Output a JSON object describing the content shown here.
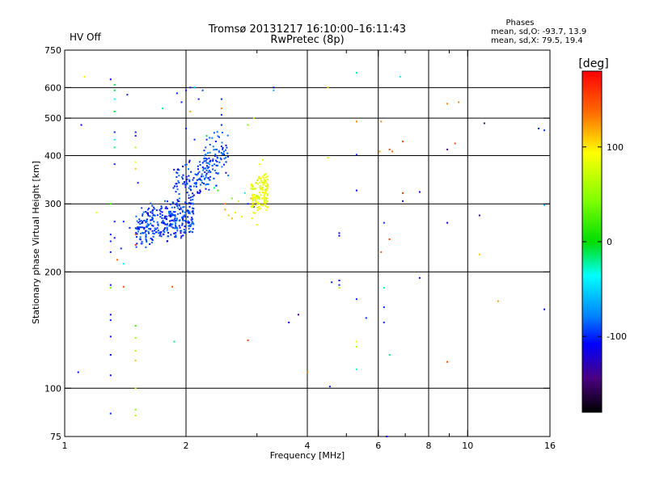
{
  "header": {
    "title": "Tromsø 20131217 16:10:00–16:11:43",
    "subtitle": "RwPretec (8p)",
    "status": "HV Off",
    "status_color": "#cc0000",
    "stats_label": "Phases",
    "stats_o": "mean, sd,O: -93.7, 13.9",
    "stats_x": "mean, sd,X:  79.5, 19.4"
  },
  "colorbar": {
    "unit": "[deg]",
    "min": -180,
    "max": 180,
    "ticks": [
      {
        "value": 100,
        "label": "100"
      },
      {
        "value": 0,
        "label": "0"
      },
      {
        "value": -100,
        "label": "-100"
      }
    ]
  },
  "chart_data": {
    "type": "scatter",
    "xscale": "log",
    "yscale": "log",
    "xlabel": "Frequency [MHz]",
    "ylabel": "Stationary phase Virtual Height [km]",
    "xlim": [
      1,
      16
    ],
    "ylim": [
      75,
      750
    ],
    "grid": true,
    "x_ticks": [
      {
        "value": 1,
        "label": "1"
      },
      {
        "value": 2,
        "label": "2"
      },
      {
        "value": 4,
        "label": "4"
      },
      {
        "value": 6,
        "label": "6"
      },
      {
        "value": 8,
        "label": "8"
      },
      {
        "value": 10,
        "label": "10"
      },
      {
        "value": 16,
        "label": "16"
      }
    ],
    "x_minor_ticks": [
      3,
      5,
      7,
      9
    ],
    "x_gridlines": [
      2,
      4,
      6,
      8,
      10
    ],
    "y_ticks": [
      {
        "value": 75,
        "label": "75"
      },
      {
        "value": 100,
        "label": "100"
      },
      {
        "value": 200,
        "label": "200"
      },
      {
        "value": 300,
        "label": "300"
      },
      {
        "value": 400,
        "label": "400"
      },
      {
        "value": 500,
        "label": "500"
      },
      {
        "value": 600,
        "label": "600"
      },
      {
        "value": 750,
        "label": "750"
      }
    ],
    "y_gridlines": [
      100,
      200,
      300,
      400,
      500,
      600
    ],
    "color_encoding": "phase [deg]",
    "series": [
      {
        "clusters": [
          {
            "x": [
              1.5,
              2.1
            ],
            "y": [
              235,
              310
            ],
            "n": 330,
            "phase": -95
          },
          {
            "x": [
              1.85,
              2.3
            ],
            "y": [
              300,
              400
            ],
            "n": 110,
            "phase": -95
          },
          {
            "x": [
              2.2,
              2.55
            ],
            "y": [
              330,
              470
            ],
            "n": 90,
            "phase": -92
          }
        ],
        "points": [
          {
            "x": 1.3,
            "y": 630,
            "phase": -110
          },
          {
            "x": 1.33,
            "y": 610,
            "phase": -10
          },
          {
            "x": 1.33,
            "y": 590,
            "phase": -10
          },
          {
            "x": 1.33,
            "y": 560,
            "phase": -40
          },
          {
            "x": 1.33,
            "y": 520,
            "phase": -10
          },
          {
            "x": 1.43,
            "y": 575,
            "phase": -100
          },
          {
            "x": 1.33,
            "y": 460,
            "phase": -100
          },
          {
            "x": 1.33,
            "y": 440,
            "phase": -40
          },
          {
            "x": 1.33,
            "y": 420,
            "phase": -20
          },
          {
            "x": 1.33,
            "y": 380,
            "phase": -100
          },
          {
            "x": 1.5,
            "y": 460,
            "phase": -100
          },
          {
            "x": 1.5,
            "y": 450,
            "phase": -100
          },
          {
            "x": 1.5,
            "y": 420,
            "phase": 60
          },
          {
            "x": 1.5,
            "y": 385,
            "phase": 90
          },
          {
            "x": 1.5,
            "y": 370,
            "phase": 110
          },
          {
            "x": 1.52,
            "y": 340,
            "phase": -100
          },
          {
            "x": 1.75,
            "y": 530,
            "phase": -20
          },
          {
            "x": 1.1,
            "y": 480,
            "phase": -110
          },
          {
            "x": 1.12,
            "y": 640,
            "phase": 100
          },
          {
            "x": 1.3,
            "y": 300,
            "phase": 20
          },
          {
            "x": 1.3,
            "y": 250,
            "phase": -100
          },
          {
            "x": 1.3,
            "y": 240,
            "phase": -100
          },
          {
            "x": 1.3,
            "y": 225,
            "phase": -100
          },
          {
            "x": 1.33,
            "y": 270,
            "phase": -100
          },
          {
            "x": 1.33,
            "y": 245,
            "phase": -110
          },
          {
            "x": 1.35,
            "y": 215,
            "phase": 140
          },
          {
            "x": 1.38,
            "y": 230,
            "phase": -100
          },
          {
            "x": 1.4,
            "y": 210,
            "phase": -40
          },
          {
            "x": 1.4,
            "y": 270,
            "phase": -100
          },
          {
            "x": 1.45,
            "y": 260,
            "phase": -100
          },
          {
            "x": 1.5,
            "y": 250,
            "phase": 140
          },
          {
            "x": 1.5,
            "y": 235,
            "phase": 160
          },
          {
            "x": 1.2,
            "y": 285,
            "phase": 90
          },
          {
            "x": 1.9,
            "y": 580,
            "phase": -100
          },
          {
            "x": 2.0,
            "y": 590,
            "phase": -100
          },
          {
            "x": 2.05,
            "y": 600,
            "phase": -100
          },
          {
            "x": 2.1,
            "y": 600,
            "phase": -60
          },
          {
            "x": 2.15,
            "y": 560,
            "phase": -100
          },
          {
            "x": 2.2,
            "y": 590,
            "phase": -90
          },
          {
            "x": 1.95,
            "y": 550,
            "phase": -100
          },
          {
            "x": 2.05,
            "y": 520,
            "phase": 120
          },
          {
            "x": 2.0,
            "y": 470,
            "phase": -100
          },
          {
            "x": 2.1,
            "y": 440,
            "phase": -100
          },
          {
            "x": 2.25,
            "y": 450,
            "phase": -10
          },
          {
            "x": 2.45,
            "y": 560,
            "phase": -100
          },
          {
            "x": 2.45,
            "y": 530,
            "phase": 130
          },
          {
            "x": 2.45,
            "y": 510,
            "phase": -100
          },
          {
            "x": 2.45,
            "y": 480,
            "phase": -100
          },
          {
            "x": 2.5,
            "y": 300,
            "phase": 130
          },
          {
            "x": 2.5,
            "y": 290,
            "phase": 120
          },
          {
            "x": 2.55,
            "y": 280,
            "phase": 110
          },
          {
            "x": 2.6,
            "y": 275,
            "phase": 115
          },
          {
            "x": 2.65,
            "y": 285,
            "phase": 100
          },
          {
            "x": 2.75,
            "y": 278,
            "phase": 100
          },
          {
            "x": 2.8,
            "y": 320,
            "phase": -40
          },
          {
            "x": 2.9,
            "y": 310,
            "phase": 120
          },
          {
            "x": 2.85,
            "y": 480,
            "phase": 40
          },
          {
            "x": 2.95,
            "y": 500,
            "phase": 60
          },
          {
            "x": 2.35,
            "y": 330,
            "phase": -20
          },
          {
            "x": 2.4,
            "y": 325,
            "phase": 20
          },
          {
            "x": 2.6,
            "y": 310,
            "phase": 40
          },
          {
            "x": 2.7,
            "y": 305,
            "phase": 70
          },
          {
            "x": 2.85,
            "y": 300,
            "phase": -100
          },
          {
            "x": 2.95,
            "y": 295,
            "phase": -100
          },
          {
            "x": 3.0,
            "y": 300,
            "phase": -130
          },
          {
            "x": 3.15,
            "y": 300,
            "phase": 110
          },
          {
            "x": 3.3,
            "y": 600,
            "phase": -110
          },
          {
            "x": 3.3,
            "y": 590,
            "phase": -60
          },
          {
            "x": 1.3,
            "y": 185,
            "phase": -110
          },
          {
            "x": 1.3,
            "y": 182,
            "phase": 40
          },
          {
            "x": 1.4,
            "y": 183,
            "phase": 150
          },
          {
            "x": 1.3,
            "y": 155,
            "phase": -110
          },
          {
            "x": 1.3,
            "y": 150,
            "phase": -100
          },
          {
            "x": 1.3,
            "y": 136,
            "phase": -110
          },
          {
            "x": 1.3,
            "y": 122,
            "phase": -110
          },
          {
            "x": 1.3,
            "y": 108,
            "phase": -110
          },
          {
            "x": 1.3,
            "y": 86,
            "phase": -100
          },
          {
            "x": 1.5,
            "y": 145,
            "phase": 20
          },
          {
            "x": 1.5,
            "y": 135,
            "phase": 50
          },
          {
            "x": 1.5,
            "y": 125,
            "phase": 60
          },
          {
            "x": 1.5,
            "y": 118,
            "phase": 110
          },
          {
            "x": 1.5,
            "y": 100,
            "phase": 80
          },
          {
            "x": 1.5,
            "y": 88,
            "phase": 40
          },
          {
            "x": 1.5,
            "y": 85,
            "phase": 60
          },
          {
            "x": 1.08,
            "y": 110,
            "phase": -110
          },
          {
            "x": 1.85,
            "y": 183,
            "phase": 150
          },
          {
            "x": 1.87,
            "y": 132,
            "phase": -20
          },
          {
            "x": 2.85,
            "y": 133,
            "phase": 160
          },
          {
            "x": 3.6,
            "y": 148,
            "phase": -110
          },
          {
            "x": 3.8,
            "y": 155,
            "phase": -140
          },
          {
            "x": 4.0,
            "y": 110,
            "phase": 130
          },
          {
            "x": 4.6,
            "y": 188,
            "phase": -100
          },
          {
            "x": 4.8,
            "y": 190,
            "phase": -110
          },
          {
            "x": 4.8,
            "y": 185,
            "phase": -100
          },
          {
            "x": 4.8,
            "y": 182,
            "phase": 60
          },
          {
            "x": 4.55,
            "y": 101,
            "phase": -100
          },
          {
            "x": 4.5,
            "y": 395,
            "phase": 70
          },
          {
            "x": 4.5,
            "y": 600,
            "phase": 110
          },
          {
            "x": 4.8,
            "y": 252,
            "phase": -110
          },
          {
            "x": 4.8,
            "y": 248,
            "phase": -110
          },
          {
            "x": 5.3,
            "y": 655,
            "phase": -20
          },
          {
            "x": 5.3,
            "y": 490,
            "phase": 130
          },
          {
            "x": 5.3,
            "y": 402,
            "phase": -100
          },
          {
            "x": 5.3,
            "y": 325,
            "phase": -110
          },
          {
            "x": 5.3,
            "y": 170,
            "phase": -100
          },
          {
            "x": 5.3,
            "y": 132,
            "phase": 90
          },
          {
            "x": 5.3,
            "y": 128,
            "phase": 60
          },
          {
            "x": 5.3,
            "y": 112,
            "phase": -30
          },
          {
            "x": 5.6,
            "y": 152,
            "phase": -100
          },
          {
            "x": 6.1,
            "y": 490,
            "phase": 130
          },
          {
            "x": 6.05,
            "y": 410,
            "phase": 120
          },
          {
            "x": 6.2,
            "y": 268,
            "phase": -100
          },
          {
            "x": 6.1,
            "y": 225,
            "phase": 140
          },
          {
            "x": 6.2,
            "y": 182,
            "phase": -30
          },
          {
            "x": 6.2,
            "y": 162,
            "phase": -100
          },
          {
            "x": 6.2,
            "y": 148,
            "phase": -100
          },
          {
            "x": 6.4,
            "y": 243,
            "phase": 150
          },
          {
            "x": 6.4,
            "y": 415,
            "phase": 150
          },
          {
            "x": 6.5,
            "y": 410,
            "phase": 140
          },
          {
            "x": 6.4,
            "y": 122,
            "phase": -20
          },
          {
            "x": 6.8,
            "y": 640,
            "phase": -40
          },
          {
            "x": 6.9,
            "y": 435,
            "phase": 150
          },
          {
            "x": 6.9,
            "y": 320,
            "phase": 160
          },
          {
            "x": 6.9,
            "y": 305,
            "phase": -110
          },
          {
            "x": 7.6,
            "y": 322,
            "phase": -110
          },
          {
            "x": 7.6,
            "y": 193,
            "phase": -110
          },
          {
            "x": 6.3,
            "y": 75,
            "phase": -110
          },
          {
            "x": 8.9,
            "y": 545,
            "phase": 130
          },
          {
            "x": 9.5,
            "y": 550,
            "phase": 130
          },
          {
            "x": 8.9,
            "y": 415,
            "phase": -140
          },
          {
            "x": 9.3,
            "y": 430,
            "phase": 150
          },
          {
            "x": 8.9,
            "y": 268,
            "phase": -110
          },
          {
            "x": 8.9,
            "y": 117,
            "phase": 150
          },
          {
            "x": 10.7,
            "y": 280,
            "phase": -140
          },
          {
            "x": 10.7,
            "y": 222,
            "phase": 110
          },
          {
            "x": 11.0,
            "y": 485,
            "phase": -150
          },
          {
            "x": 11.9,
            "y": 168,
            "phase": 120
          },
          {
            "x": 15.0,
            "y": 470,
            "phase": -100
          },
          {
            "x": 15.5,
            "y": 465,
            "phase": -100
          },
          {
            "x": 15.5,
            "y": 160,
            "phase": -110
          },
          {
            "x": 15.5,
            "y": 298,
            "phase": -70
          }
        ]
      },
      {
        "clusters": [
          {
            "x": [
              2.9,
              3.2
            ],
            "y": [
              275,
              360
            ],
            "n": 140,
            "phase": 85
          }
        ],
        "points": [
          {
            "x": 3.05,
            "y": 380,
            "phase": 90
          },
          {
            "x": 3.1,
            "y": 390,
            "phase": 80
          },
          {
            "x": 3.0,
            "y": 265,
            "phase": 95
          }
        ]
      }
    ]
  }
}
